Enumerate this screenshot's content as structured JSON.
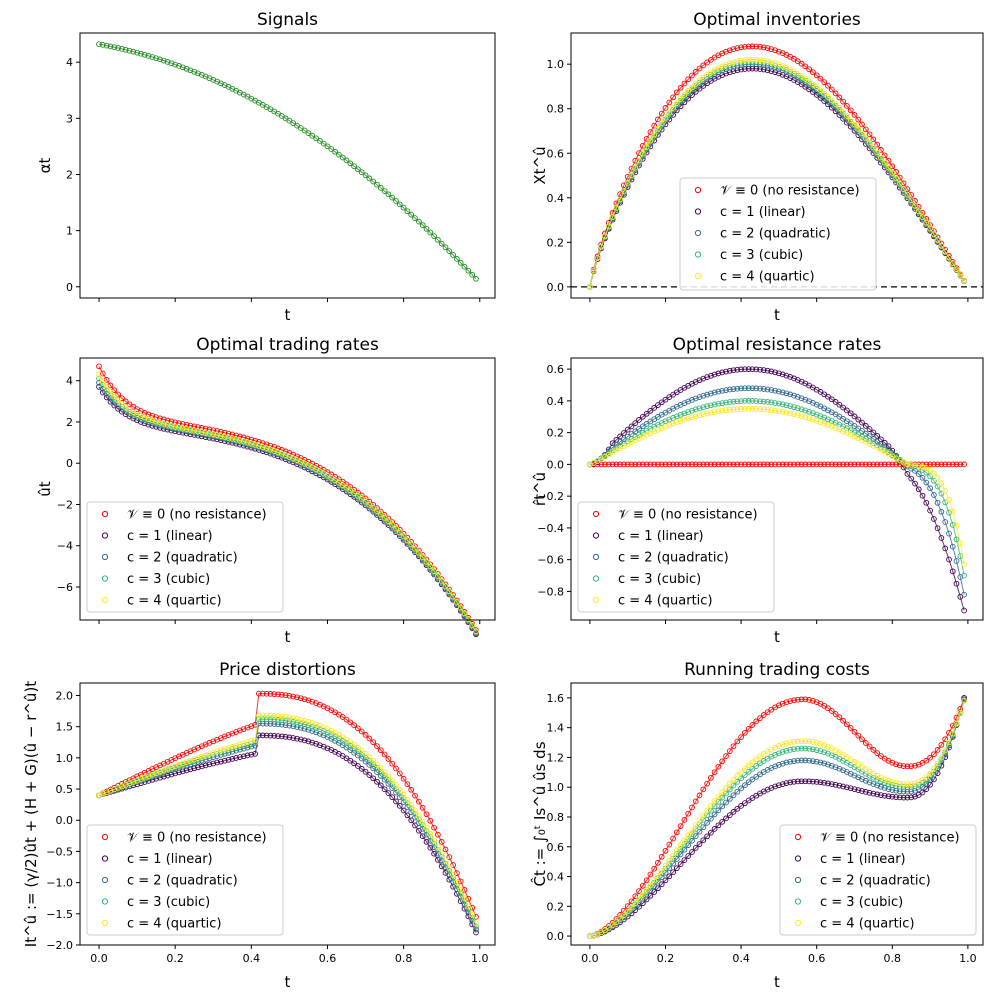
{
  "figure": {
    "xlabel": "t"
  },
  "legend_entries": [
    {
      "label": "𝒱 ≡ 0 (no resistance)",
      "color": "#ff0000"
    },
    {
      "label": "c = 1 (linear)",
      "color": "#440154"
    },
    {
      "label": "c = 2 (quadratic)",
      "color": "#31688e"
    },
    {
      "label": "c = 3 (cubic)",
      "color": "#35b779"
    },
    {
      "label": "c = 4 (quartic)",
      "color": "#fde725"
    }
  ],
  "chart_data": [
    {
      "type": "scatter",
      "title": "Signals",
      "xlabel": "t",
      "ylabel": "αt",
      "xlim": [
        -0.05,
        1.04
      ],
      "ylim": [
        -0.2,
        4.52
      ],
      "yticks": [
        "0",
        "1",
        "2",
        "3",
        "4"
      ],
      "xticks": [],
      "legend": "none",
      "series": [
        {
          "color": "#228b22",
          "fn": "signal"
        }
      ]
    },
    {
      "type": "scatter",
      "title": "Optimal inventories",
      "xlabel": "t",
      "ylabel": "Xt^û",
      "xlim": [
        -0.05,
        1.04
      ],
      "ylim": [
        -0.05,
        1.14
      ],
      "yticks": [
        "0.0",
        "0.2",
        "0.4",
        "0.6",
        "0.8",
        "1.0"
      ],
      "xticks": [],
      "zero_line": true,
      "legend": "lower-center",
      "series": [
        {
          "color": "#ff0000",
          "fn": "inv",
          "peak": 1.08
        },
        {
          "color": "#440154",
          "fn": "inv",
          "peak": 0.98
        },
        {
          "color": "#31688e",
          "fn": "inv",
          "peak": 1.0
        },
        {
          "color": "#35b779",
          "fn": "inv",
          "peak": 1.01
        },
        {
          "color": "#fde725",
          "fn": "inv",
          "peak": 1.02
        }
      ]
    },
    {
      "type": "scatter",
      "title": "Optimal trading rates",
      "xlabel": "t",
      "ylabel": "ût",
      "xlim": [
        -0.05,
        1.04
      ],
      "ylim": [
        -7.6,
        5.1
      ],
      "yticks": [
        "−6",
        "−4",
        "−2",
        "0",
        "2",
        "4"
      ],
      "xticks": [],
      "legend": "lower-left",
      "series": [
        {
          "color": "#ff0000",
          "fn": "rate",
          "start": 4.7,
          "mid": 2.15,
          "end": -6.8
        },
        {
          "color": "#440154",
          "fn": "rate",
          "start": 3.7,
          "mid": 1.75,
          "end": -7.0
        },
        {
          "color": "#31688e",
          "fn": "rate",
          "start": 3.9,
          "mid": 1.85,
          "end": -6.95
        },
        {
          "color": "#35b779",
          "fn": "rate",
          "start": 4.1,
          "mid": 1.9,
          "end": -6.9
        },
        {
          "color": "#fde725",
          "fn": "rate",
          "start": 4.3,
          "mid": 1.95,
          "end": -6.85
        }
      ]
    },
    {
      "type": "scatter",
      "title": "Optimal resistance rates",
      "xlabel": "t",
      "ylabel": "r̂t^û",
      "xlim": [
        -0.05,
        1.04
      ],
      "ylim": [
        -0.98,
        0.67
      ],
      "yticks": [
        "−0.8",
        "−0.6",
        "−0.4",
        "−0.2",
        "0.0",
        "0.2",
        "0.4",
        "0.6"
      ],
      "xticks": [],
      "legend": "lower-left",
      "series": [
        {
          "color": "#ff0000",
          "fn": "zero"
        },
        {
          "color": "#440154",
          "fn": "resist",
          "peak": 0.6,
          "end": -0.92,
          "power": 1
        },
        {
          "color": "#31688e",
          "fn": "resist",
          "peak": 0.48,
          "end": -0.82,
          "power": 2
        },
        {
          "color": "#35b779",
          "fn": "resist",
          "peak": 0.4,
          "end": -0.7,
          "power": 3
        },
        {
          "color": "#fde725",
          "fn": "resist",
          "peak": 0.35,
          "end": -0.63,
          "power": 4
        }
      ]
    },
    {
      "type": "scatter",
      "title": "Price distortions",
      "xlabel": "t",
      "ylabel": "It^û := (γ/2)ût + (H + G)(û − r^û)t",
      "xlim": [
        -0.05,
        1.04
      ],
      "ylim": [
        -2.0,
        2.2
      ],
      "yticks": [
        "−2.0",
        "−1.5",
        "−1.0",
        "−0.5",
        "0.0",
        "0.5",
        "1.0",
        "1.5",
        "2.0"
      ],
      "xticks": [
        "0.0",
        "0.2",
        "0.4",
        "0.6",
        "0.8",
        "1.0"
      ],
      "legend": "lower-left",
      "series": [
        {
          "color": "#ff0000",
          "fn": "dist",
          "peak": 2.03,
          "end": -1.55
        },
        {
          "color": "#440154",
          "fn": "dist",
          "peak": 1.36,
          "end": -1.8
        },
        {
          "color": "#31688e",
          "fn": "dist",
          "peak": 1.55,
          "end": -1.75
        },
        {
          "color": "#35b779",
          "fn": "dist",
          "peak": 1.62,
          "end": -1.7
        },
        {
          "color": "#fde725",
          "fn": "dist",
          "peak": 1.68,
          "end": -1.65
        }
      ]
    },
    {
      "type": "scatter",
      "title": "Running trading costs",
      "xlabel": "t",
      "ylabel": "Ĉt := ∫₀ᵗ Is^û ûs ds",
      "xlim": [
        -0.05,
        1.04
      ],
      "ylim": [
        -0.06,
        1.7
      ],
      "yticks": [
        "0.0",
        "0.2",
        "0.4",
        "0.6",
        "0.8",
        "1.0",
        "1.2",
        "1.4",
        "1.6"
      ],
      "xticks": [
        "0.0",
        "0.2",
        "0.4",
        "0.6",
        "0.8",
        "1.0"
      ],
      "legend": "lower-right",
      "series": [
        {
          "color": "#ff0000",
          "fn": "cost",
          "peak": 1.59,
          "trough": 1.14,
          "end": 1.59
        },
        {
          "color": "#440154",
          "fn": "cost",
          "peak": 1.04,
          "trough": 0.93,
          "end": 1.6
        },
        {
          "color": "#31688e",
          "fn": "cost",
          "peak": 1.18,
          "trough": 0.97,
          "end": 1.59
        },
        {
          "color": "#35b779",
          "fn": "cost",
          "peak": 1.26,
          "trough": 1.0,
          "end": 1.58
        },
        {
          "color": "#fde725",
          "fn": "cost",
          "peak": 1.31,
          "trough": 1.02,
          "end": 1.58
        }
      ]
    }
  ]
}
